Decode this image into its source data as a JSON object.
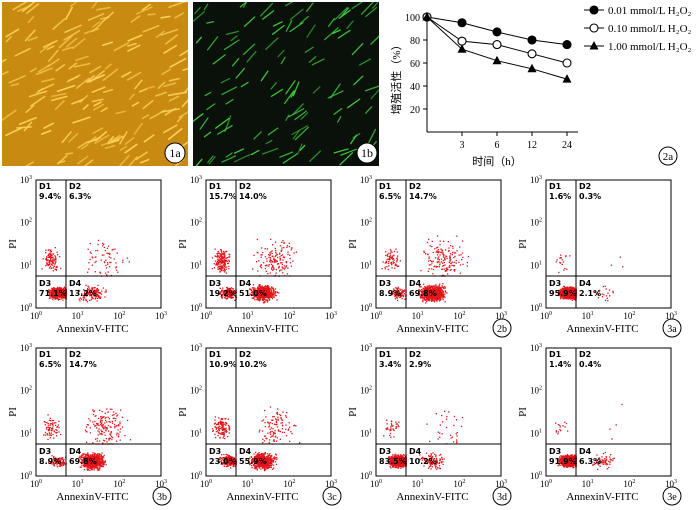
{
  "micrographs": [
    {
      "label": "1a",
      "tone": "#c98a12",
      "cell_color": "#ffd25a",
      "cell_count": 160
    },
    {
      "label": "1b",
      "tone": "#0a100a",
      "cell_color": "#3fcf3f",
      "cell_count": 110
    }
  ],
  "chart_data": {
    "type": "line",
    "label": "2a",
    "ylabel": "增殖活性（%）",
    "xlabel": "时间（h）",
    "x_ticks": [
      "3",
      "6",
      "12",
      "24"
    ],
    "y_ticks": [
      "20",
      "40",
      "60",
      "80",
      "100"
    ],
    "ylim": [
      0,
      100
    ],
    "series": [
      {
        "name": "0.01 mmol/L H₂O₂",
        "marker": "filled-circle",
        "values": [
          100,
          95,
          87,
          80,
          76
        ]
      },
      {
        "name": "0.10 mmol/L H₂O₂",
        "marker": "open-circle",
        "values": [
          100,
          79,
          76,
          68,
          60
        ]
      },
      {
        "name": "1.00 mmol/L H₂O₂",
        "marker": "filled-triangle",
        "values": [
          100,
          72,
          62,
          55,
          46
        ]
      }
    ]
  },
  "flow_common": {
    "ylabel": "PI",
    "xlabel": "AnnexinV-FITC",
    "tick_base": "10",
    "tick_exps": [
      "0",
      "1",
      "2",
      "3"
    ],
    "quadrant_names": [
      "D1",
      "D2",
      "D3",
      "D4"
    ],
    "dot_color": "#e0161b"
  },
  "flow_panels": [
    {
      "tag": "",
      "q": [
        "9.4%",
        "6.3%",
        "71.1%",
        "13.2%"
      ]
    },
    {
      "tag": "",
      "q": [
        "15.7%",
        "14.0%",
        "19.2%",
        "51.0%"
      ]
    },
    {
      "tag": "2b",
      "q": [
        "6.5%",
        "14.7%",
        "8.9%",
        "69.8%"
      ]
    },
    {
      "tag": "3a",
      "q": [
        "1.6%",
        "0.3%",
        "95.9%",
        "2.1%"
      ]
    },
    {
      "tag": "3b",
      "q": [
        "6.5%",
        "14.7%",
        "8.9%",
        "69.8%"
      ]
    },
    {
      "tag": "3c",
      "q": [
        "10.9%",
        "10.2%",
        "23.0%",
        "55.9%"
      ]
    },
    {
      "tag": "3d",
      "q": [
        "3.4%",
        "2.9%",
        "83.5%",
        "10.2%"
      ]
    },
    {
      "tag": "3e",
      "q": [
        "1.4%",
        "0.4%",
        "91.9%",
        "6.3%"
      ]
    }
  ]
}
